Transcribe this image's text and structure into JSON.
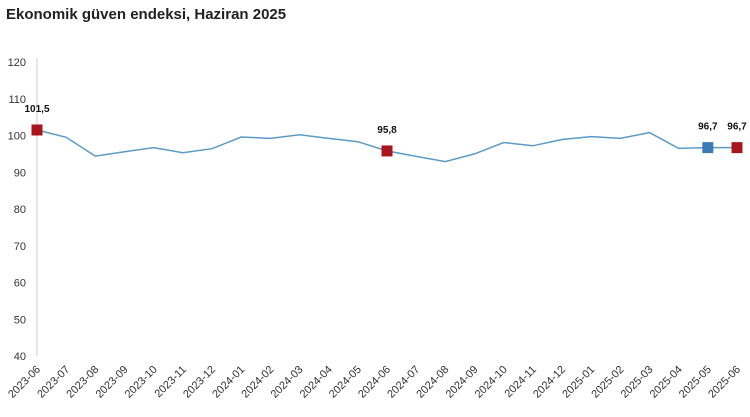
{
  "chart_data": {
    "type": "line",
    "title": "Ekonomik güven endeksi, Haziran 2025",
    "xlabel": "",
    "ylabel": "",
    "ylim": [
      40,
      120
    ],
    "yticks": [
      40,
      50,
      60,
      70,
      80,
      90,
      100,
      110,
      120
    ],
    "grid": false,
    "legend": "none",
    "line_color": "#5b9bc4",
    "categories": [
      "2023-06",
      "2023-07",
      "2023-08",
      "2023-09",
      "2023-10",
      "2023-11",
      "2023-12",
      "2024-01",
      "2024-02",
      "2024-03",
      "2024-04",
      "2024-05",
      "2024-06",
      "2024-07",
      "2024-08",
      "2024-09",
      "2024-10",
      "2024-11",
      "2024-12",
      "2025-01",
      "2025-02",
      "2025-03",
      "2025-04",
      "2025-05",
      "2025-06"
    ],
    "series": [
      {
        "values": [
          101.5,
          99.5,
          94.4,
          95.6,
          96.7,
          95.3,
          96.4,
          99.6,
          99.2,
          100.2,
          99.2,
          98.3,
          95.8,
          94.3,
          92.9,
          95.0,
          98.1,
          97.2,
          98.9,
          99.7,
          99.2,
          100.8,
          96.5,
          96.7,
          96.7
        ]
      }
    ],
    "markers": [
      {
        "index": 0,
        "label": "101,5",
        "color": "#a8161c"
      },
      {
        "index": 12,
        "label": "95,8",
        "color": "#a8161c"
      },
      {
        "index": 23,
        "label": "96,7",
        "color": "#3a7bb6"
      },
      {
        "index": 24,
        "label": "96,7",
        "color": "#a8161c"
      }
    ]
  }
}
